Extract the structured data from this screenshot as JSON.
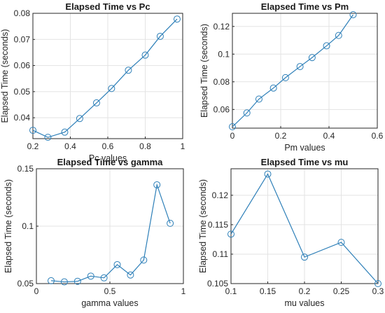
{
  "chart_data": [
    {
      "type": "line",
      "title": "Elapsed Time vs Pc",
      "xlabel": "Pc values",
      "ylabel": "Elapsed Time (seconds)",
      "x": [
        0.2,
        0.28,
        0.37,
        0.45,
        0.54,
        0.62,
        0.71,
        0.8,
        0.88,
        0.97
      ],
      "series": [
        {
          "values": [
            0.0352,
            0.0325,
            0.0345,
            0.0397,
            0.0457,
            0.0512,
            0.0582,
            0.064,
            0.0712,
            0.0778
          ]
        }
      ],
      "xlim": [
        0.2,
        1
      ],
      "ylim": [
        0.032,
        0.08
      ],
      "xticks": [
        0.2,
        0.4,
        0.6,
        0.8,
        1
      ],
      "xtick_labels": [
        "0.2",
        "0.4",
        "0.6",
        "0.8",
        "1"
      ],
      "yticks": [
        0.04,
        0.05,
        0.06,
        0.07,
        0.08
      ],
      "ytick_labels": [
        "0.04",
        "0.05",
        "0.06",
        "0.07",
        "0.08"
      ],
      "grid": true,
      "color": "#2d7fb8"
    },
    {
      "type": "line",
      "title": "Elapsed Time vs Pm",
      "xlabel": "Pm values",
      "ylabel": "Elapsed Time (seconds)",
      "x": [
        0,
        0.06,
        0.11,
        0.17,
        0.22,
        0.28,
        0.33,
        0.39,
        0.44,
        0.5
      ],
      "series": [
        {
          "values": [
            0.0475,
            0.0575,
            0.0675,
            0.0755,
            0.083,
            0.091,
            0.0975,
            0.106,
            0.1135,
            0.1285
          ]
        }
      ],
      "xlim": [
        0,
        0.6
      ],
      "ylim": [
        0.0465,
        0.1295
      ],
      "xticks": [
        0,
        0.2,
        0.4,
        0.6
      ],
      "xtick_labels": [
        "0",
        "0.2",
        "0.4",
        "0.6"
      ],
      "yticks": [
        0.06,
        0.08,
        0.1,
        0.12
      ],
      "ytick_labels": [
        "0.06",
        "0.08",
        "0.1",
        "0.12"
      ],
      "grid": true,
      "color": "#2d7fb8"
    },
    {
      "type": "line",
      "title": "Elapsed Time vs gamma",
      "xlabel": "gamma values",
      "ylabel": "Elapsed Time (seconds)",
      "x": [
        0.1,
        0.19,
        0.28,
        0.37,
        0.46,
        0.55,
        0.64,
        0.73,
        0.82,
        0.91
      ],
      "series": [
        {
          "values": [
            0.0525,
            0.0515,
            0.052,
            0.0565,
            0.055,
            0.0665,
            0.0575,
            0.0705,
            0.136,
            0.1025
          ]
        }
      ],
      "xlim": [
        0,
        1
      ],
      "ylim": [
        0.05,
        0.15
      ],
      "xticks": [
        0,
        0.5,
        1
      ],
      "xtick_labels": [
        "0",
        "0.5",
        "1"
      ],
      "yticks": [
        0.05,
        0.1,
        0.15
      ],
      "ytick_labels": [
        "0.05",
        "0.1",
        "0.15"
      ],
      "grid": true,
      "color": "#2d7fb8"
    },
    {
      "type": "line",
      "title": "Elapsed Time vs mu",
      "xlabel": "mu values",
      "ylabel": "Elapsed Time (seconds)",
      "x": [
        0.1,
        0.15,
        0.2,
        0.25,
        0.3
      ],
      "series": [
        {
          "values": [
            0.1134,
            0.1236,
            0.1095,
            0.112,
            0.105
          ]
        }
      ],
      "xlim": [
        0.1,
        0.3
      ],
      "ylim": [
        0.105,
        0.1245
      ],
      "xticks": [
        0.1,
        0.15,
        0.2,
        0.25,
        0.3
      ],
      "xtick_labels": [
        "0.1",
        "0.15",
        "0.2",
        "0.25",
        "0.3"
      ],
      "yticks": [
        0.105,
        0.11,
        0.115,
        0.12
      ],
      "ytick_labels": [
        "0.105",
        "0.11",
        "0.115",
        "0.12"
      ],
      "grid": true,
      "color": "#2d7fb8"
    }
  ]
}
